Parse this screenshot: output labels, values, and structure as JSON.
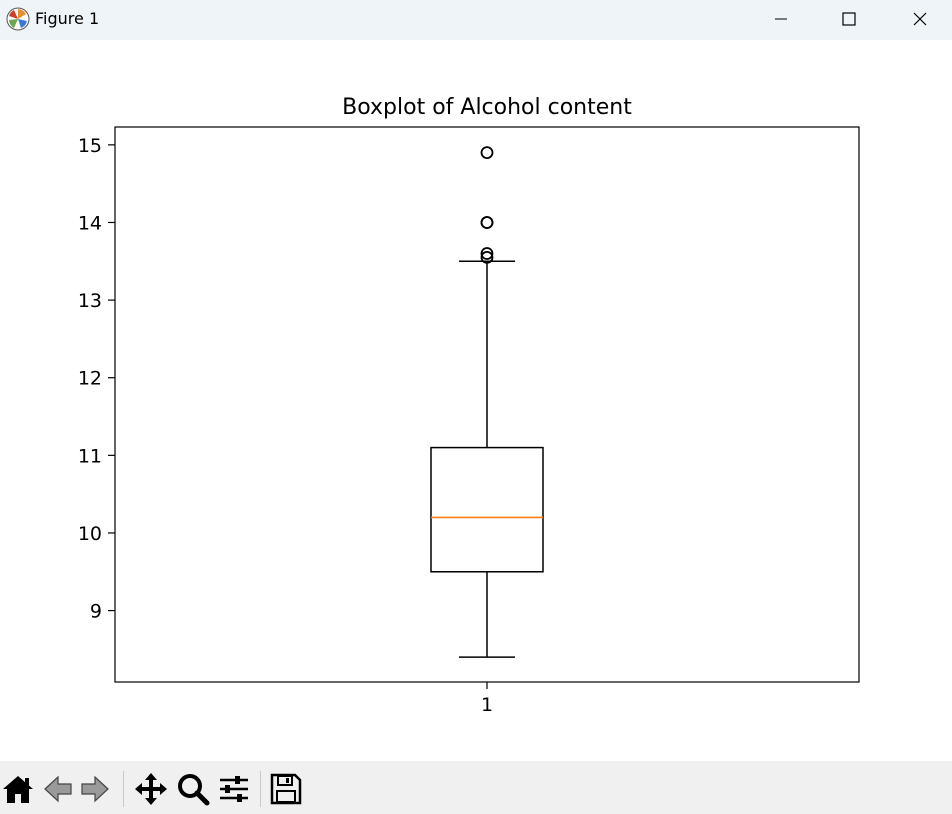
{
  "window": {
    "title": "Figure 1",
    "icons": {
      "app": "matplotlib-icon",
      "minimize": "minimize-icon",
      "maximize": "maximize-icon",
      "close": "close-icon"
    }
  },
  "toolbar": {
    "buttons": [
      {
        "name": "home-icon",
        "tooltip": "Reset original view"
      },
      {
        "name": "back-arrow-icon",
        "tooltip": "Back"
      },
      {
        "name": "forward-arrow-icon",
        "tooltip": "Forward"
      },
      {
        "name": "pan-move-icon",
        "tooltip": "Pan"
      },
      {
        "name": "zoom-magnifier-icon",
        "tooltip": "Zoom"
      },
      {
        "name": "subplots-sliders-icon",
        "tooltip": "Configure subplots"
      },
      {
        "name": "save-floppy-icon",
        "tooltip": "Save"
      }
    ]
  },
  "chart_data": {
    "type": "boxplot",
    "title": "Boxplot of Alcohol content",
    "xlabel": "",
    "ylabel": "",
    "categories": [
      "1"
    ],
    "ylim": [
      8.08,
      15.23
    ],
    "yticks": [
      9,
      10,
      11,
      12,
      13,
      14,
      15
    ],
    "grid": false,
    "boxes": [
      {
        "category": "1",
        "whisker_low": 8.4,
        "q1": 9.5,
        "median": 10.2,
        "q3": 11.1,
        "whisker_high": 13.5,
        "outliers": [
          13.55,
          13.6,
          14.0,
          14.0,
          14.9
        ]
      }
    ],
    "colors": {
      "box": "#000000",
      "median": "#ff7f0e",
      "outlier": "#000000"
    }
  }
}
